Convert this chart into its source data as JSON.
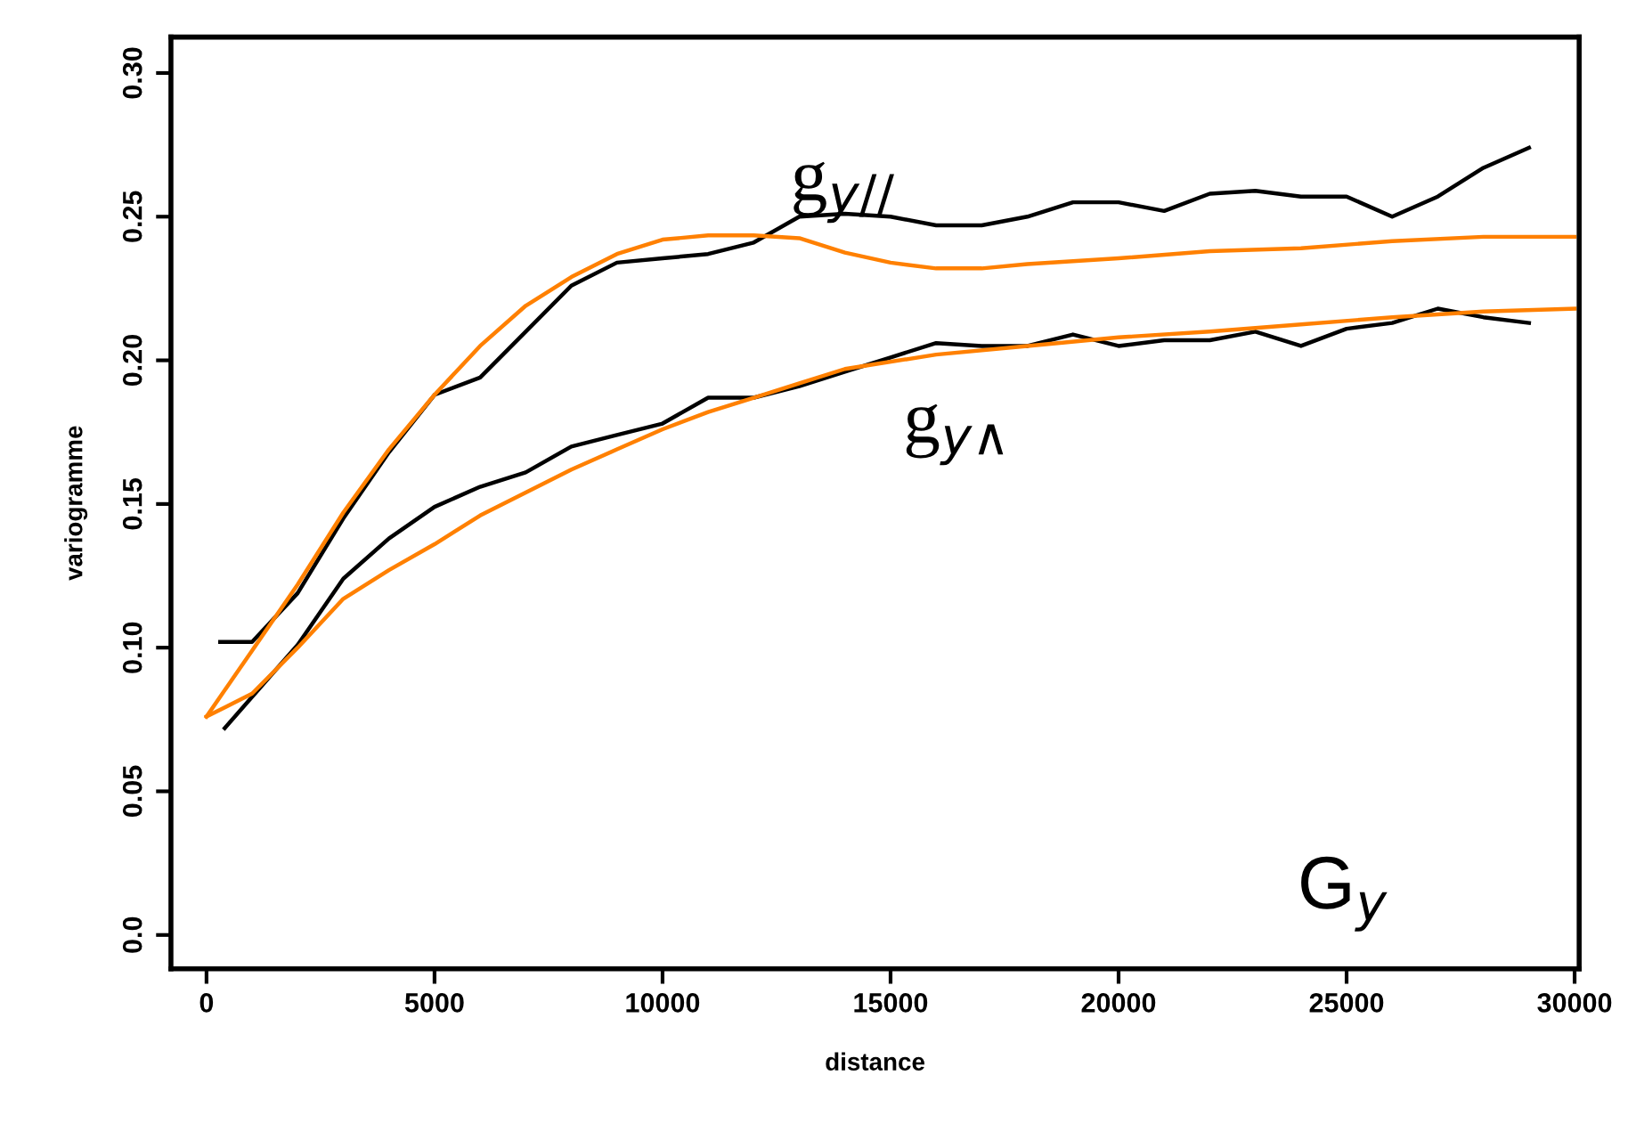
{
  "chart_data": {
    "type": "line",
    "xlabel": "distance",
    "ylabel": "variogramme",
    "xlim": [
      -780,
      30100
    ],
    "ylim": [
      -0.0118,
      0.3125
    ],
    "xticks": [
      0,
      5000,
      10000,
      15000,
      20000,
      25000,
      30000
    ],
    "yticks": [
      {
        "value": 0,
        "label": "0.0"
      },
      {
        "value": 0.05,
        "label": "0.05"
      },
      {
        "value": 0.1,
        "label": "0.10"
      },
      {
        "value": 0.15,
        "label": "0.15"
      },
      {
        "value": 0.2,
        "label": "0.20"
      },
      {
        "value": 0.25,
        "label": "0.25"
      },
      {
        "value": 0.3,
        "label": "0.30"
      }
    ],
    "grid": false,
    "legend": false,
    "series": [
      {
        "color": "#000000",
        "x": [
          300,
          1000,
          2000,
          3000,
          4000,
          5000,
          6000,
          7000,
          8000,
          9000,
          10000,
          11000,
          12000,
          13000,
          14000,
          15000,
          16000,
          17000,
          18000,
          19000,
          20000,
          21000,
          22000,
          23000,
          24000,
          25000,
          26000,
          27000,
          28000,
          29000
        ],
        "values": [
          0.102,
          0.102,
          0.119,
          0.145,
          0.168,
          0.188,
          0.194,
          0.21,
          0.226,
          0.234,
          0.2355,
          0.237,
          0.241,
          0.25,
          0.251,
          0.25,
          0.247,
          0.247,
          0.25,
          0.255,
          0.255,
          0.252,
          0.258,
          0.259,
          0.257,
          0.257,
          0.25,
          0.257,
          0.267,
          0.274
        ]
      },
      {
        "color": "#000000",
        "x": [
          400,
          2000,
          3000,
          4000,
          5000,
          6000,
          7000,
          8000,
          9000,
          10000,
          11000,
          12000,
          13000,
          14000,
          15000,
          16000,
          17000,
          18000,
          19000,
          20000,
          21000,
          22000,
          23000,
          24000,
          25000,
          26000,
          27000,
          28000,
          29000
        ],
        "values": [
          0.072,
          0.101,
          0.124,
          0.138,
          0.149,
          0.156,
          0.161,
          0.17,
          0.174,
          0.178,
          0.187,
          0.187,
          0.191,
          0.196,
          0.201,
          0.206,
          0.205,
          0.205,
          0.209,
          0.205,
          0.207,
          0.207,
          0.21,
          0.205,
          0.211,
          0.213,
          0.218,
          0.215,
          0.213
        ]
      },
      {
        "color": "#ff8000",
        "x": [
          0,
          1000,
          2000,
          3000,
          4000,
          5000,
          6000,
          7000,
          8000,
          9000,
          10000,
          11000,
          12000,
          13000,
          14000,
          15000,
          16000,
          17000,
          18000,
          20000,
          22000,
          24000,
          26000,
          28000,
          30000
        ],
        "values": [
          0.076,
          0.099,
          0.122,
          0.147,
          0.169,
          0.188,
          0.205,
          0.219,
          0.229,
          0.237,
          0.242,
          0.2435,
          0.2435,
          0.2425,
          0.2375,
          0.234,
          0.232,
          0.232,
          0.2335,
          0.2355,
          0.238,
          0.239,
          0.2415,
          0.243,
          0.243
        ]
      },
      {
        "color": "#ff8000",
        "x": [
          0,
          1000,
          2000,
          3000,
          4000,
          5000,
          6000,
          7000,
          8000,
          9000,
          10000,
          11000,
          12000,
          13000,
          14000,
          16000,
          18000,
          20000,
          22000,
          24000,
          26000,
          28000,
          30000
        ],
        "values": [
          0.076,
          0.084,
          0.1,
          0.117,
          0.127,
          0.136,
          0.146,
          0.154,
          0.162,
          0.169,
          0.176,
          0.182,
          0.187,
          0.192,
          0.197,
          0.202,
          0.205,
          0.208,
          0.21,
          0.2125,
          0.215,
          0.217,
          0.218
        ]
      }
    ],
    "annotations": [
      "g$_{y//}$",
      "g$_{y∧}$",
      "G$_{y}$"
    ]
  }
}
